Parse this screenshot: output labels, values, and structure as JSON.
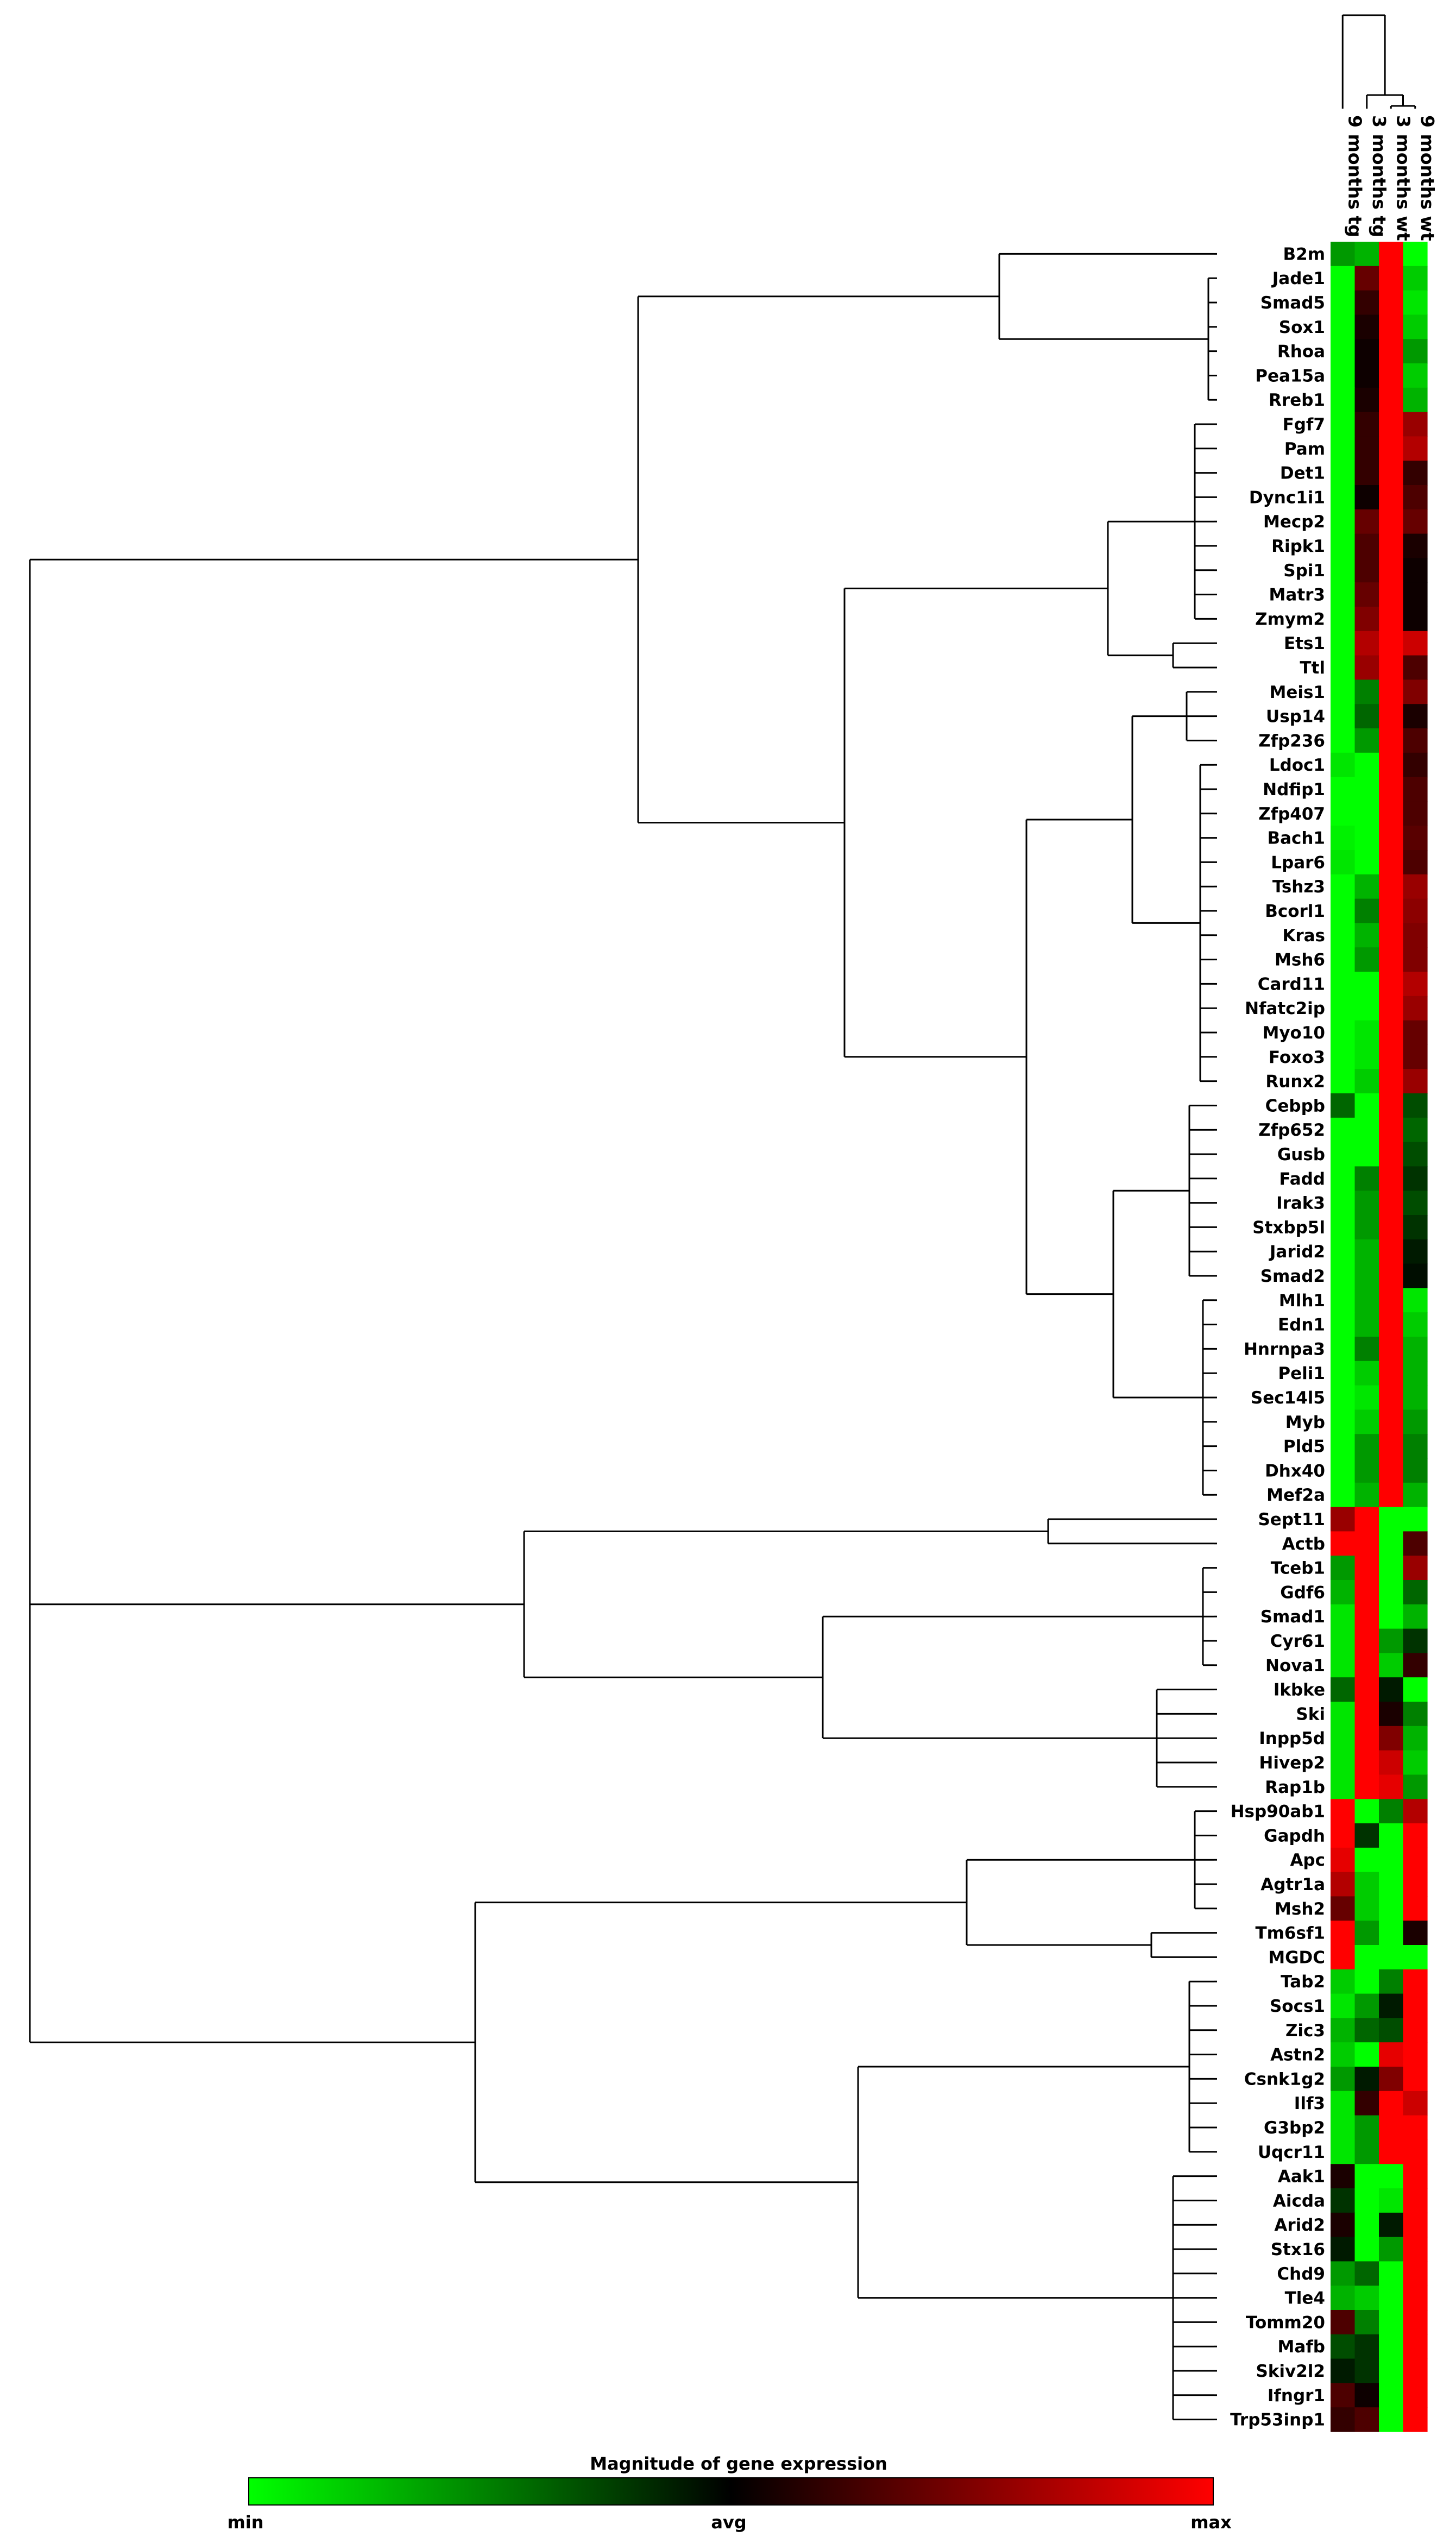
{
  "chart_data": {
    "type": "heatmap",
    "title": "",
    "xlabel": "",
    "ylabel": "",
    "value_range": [
      -1,
      1
    ],
    "colorscale": {
      "min": "#00ff00",
      "mid": "#000000",
      "max": "#ff0000"
    },
    "conditions": [
      "9 months tg",
      "3 months tg",
      "3 months wt",
      "9 months wt"
    ],
    "genes": [
      "B2m",
      "Jade1",
      "Smad5",
      "Sox1",
      "Rhoa",
      "Pea15a",
      "Rreb1",
      "Fgf7",
      "Pam",
      "Det1",
      "Dync1i1",
      "Mecp2",
      "Ripk1",
      "Spi1",
      "Matr3",
      "Zmym2",
      "Ets1",
      "Ttl",
      "Meis1",
      "Usp14",
      "Zfp236",
      "Ldoc1",
      "Ndfip1",
      "Zfp407",
      "Bach1",
      "Lpar6",
      "Tshz3",
      "Bcorl1",
      "Kras",
      "Msh6",
      "Card11",
      "Nfatc2ip",
      "Myo10",
      "Foxo3",
      "Runx2",
      "Cebpb",
      "Zfp652",
      "Gusb",
      "Fadd",
      "Irak3",
      "Stxbp5l",
      "Jarid2",
      "Smad2",
      "Mlh1",
      "Edn1",
      "Hnrnpa3",
      "Peli1",
      "Sec14l5",
      "Myb",
      "Pld5",
      "Dhx40",
      "Mef2a",
      "Sept11",
      "Actb",
      "Tceb1",
      "Gdf6",
      "Smad1",
      "Cyr61",
      "Nova1",
      "Ikbke",
      "Ski",
      "Inpp5d",
      "Hivep2",
      "Rap1b",
      "Hsp90ab1",
      "Gapdh",
      "Apc",
      "Agtr1a",
      "Msh2",
      "Tm6sf1",
      "MGDC",
      "Tab2",
      "Socs1",
      "Zic3",
      "Astn2",
      "Csnk1g2",
      "Ilf3",
      "G3bp2",
      "Uqcr11",
      "Aak1",
      "Aicda",
      "Arid2",
      "Stx16",
      "Chd9",
      "Tle4",
      "Tomm20",
      "Mafb",
      "Skiv2l2",
      "Ifngr1",
      "Trp53inp1"
    ],
    "values": [
      [
        -0.6,
        -0.7,
        1,
        -1
      ],
      [
        -1,
        0.4,
        1,
        -0.8
      ],
      [
        -1,
        0.2,
        1,
        -0.9
      ],
      [
        -1,
        0.1,
        1,
        -0.8
      ],
      [
        -1,
        0.05,
        1,
        -0.6
      ],
      [
        -1,
        0.05,
        1,
        -0.8
      ],
      [
        -1,
        0.1,
        1,
        -0.7
      ],
      [
        -1,
        0.2,
        1,
        0.6
      ],
      [
        -1,
        0.2,
        1,
        0.7
      ],
      [
        -1,
        0.2,
        1,
        0.2
      ],
      [
        -1,
        0.05,
        1,
        0.3
      ],
      [
        -1,
        0.4,
        1,
        0.4
      ],
      [
        -1,
        0.3,
        1,
        0.1
      ],
      [
        -1,
        0.3,
        1,
        0.05
      ],
      [
        -1,
        0.4,
        1,
        0.05
      ],
      [
        -1,
        0.5,
        1,
        0.05
      ],
      [
        -1,
        0.7,
        1,
        0.8
      ],
      [
        -1,
        0.6,
        1,
        0.3
      ],
      [
        -1,
        -0.5,
        1,
        0.5
      ],
      [
        -1,
        -0.4,
        1,
        0.1
      ],
      [
        -1,
        -0.6,
        1,
        0.3
      ],
      [
        -0.9,
        -1,
        1,
        0.2
      ],
      [
        -1,
        -1,
        1,
        0.3
      ],
      [
        -1,
        -1,
        1,
        0.3
      ],
      [
        -0.95,
        -1,
        1,
        0.35
      ],
      [
        -0.9,
        -1,
        1,
        0.3
      ],
      [
        -1,
        -0.7,
        1,
        0.6
      ],
      [
        -1,
        -0.5,
        1,
        0.55
      ],
      [
        -1,
        -0.7,
        1,
        0.5
      ],
      [
        -1,
        -0.6,
        1,
        0.5
      ],
      [
        -1,
        -1,
        1,
        0.7
      ],
      [
        -1,
        -1,
        1,
        0.6
      ],
      [
        -1,
        -0.9,
        1,
        0.4
      ],
      [
        -1,
        -0.9,
        1,
        0.4
      ],
      [
        -1,
        -0.8,
        1,
        0.6
      ],
      [
        -0.4,
        -1,
        1,
        -0.3
      ],
      [
        -1,
        -1,
        1,
        -0.4
      ],
      [
        -1,
        -1,
        1,
        -0.3
      ],
      [
        -1,
        -0.5,
        1,
        -0.2
      ],
      [
        -1,
        -0.6,
        1,
        -0.3
      ],
      [
        -1,
        -0.6,
        1,
        -0.2
      ],
      [
        -1,
        -0.7,
        1,
        -0.1
      ],
      [
        -1,
        -0.7,
        1,
        -0.05
      ],
      [
        -1,
        -0.7,
        1,
        -0.9
      ],
      [
        -1,
        -0.7,
        1,
        -0.8
      ],
      [
        -1,
        -0.5,
        1,
        -0.7
      ],
      [
        -1,
        -0.8,
        1,
        -0.7
      ],
      [
        -1,
        -0.9,
        1,
        -0.7
      ],
      [
        -1,
        -0.8,
        1,
        -0.6
      ],
      [
        -1,
        -0.6,
        1,
        -0.5
      ],
      [
        -1,
        -0.6,
        1,
        -0.5
      ],
      [
        -1,
        -0.7,
        1,
        -0.7
      ],
      [
        0.6,
        1,
        -1,
        -1
      ],
      [
        1,
        1,
        -1,
        0.3
      ],
      [
        -0.6,
        1,
        -1,
        0.6
      ],
      [
        -0.7,
        1,
        -1,
        -0.4
      ],
      [
        -0.9,
        1,
        -1,
        -0.7
      ],
      [
        -0.9,
        1,
        -0.6,
        -0.2
      ],
      [
        -0.9,
        1,
        -0.8,
        0.2
      ],
      [
        -0.4,
        1,
        -0.1,
        -1
      ],
      [
        -0.9,
        1,
        0.1,
        -0.5
      ],
      [
        -0.9,
        1,
        0.5,
        -0.7
      ],
      [
        -0.9,
        1,
        0.8,
        -0.8
      ],
      [
        -0.9,
        1,
        0.9,
        -0.6
      ],
      [
        1,
        -1,
        -0.5,
        0.7
      ],
      [
        1,
        -0.2,
        -1,
        1
      ],
      [
        0.9,
        -1,
        -1,
        1
      ],
      [
        0.7,
        -0.8,
        -1,
        1
      ],
      [
        0.4,
        -0.8,
        -1,
        1
      ],
      [
        1,
        -0.6,
        -1,
        0.1
      ],
      [
        1,
        -1,
        -1,
        -1
      ],
      [
        -0.8,
        -1,
        -0.5,
        1
      ],
      [
        -0.9,
        -0.6,
        -0.1,
        1
      ],
      [
        -0.7,
        -0.4,
        -0.3,
        1
      ],
      [
        -0.8,
        -1,
        0.9,
        1
      ],
      [
        -0.6,
        -0.1,
        0.5,
        1
      ],
      [
        -0.9,
        0.2,
        1,
        0.8
      ],
      [
        -0.9,
        -0.6,
        1,
        1
      ],
      [
        -0.9,
        -0.6,
        1,
        1
      ],
      [
        0.1,
        -1,
        -1,
        1
      ],
      [
        -0.2,
        -1,
        -0.9,
        1
      ],
      [
        0.1,
        -1,
        -0.1,
        1
      ],
      [
        -0.1,
        -1,
        -0.6,
        1
      ],
      [
        -0.6,
        -0.4,
        -1,
        1
      ],
      [
        -0.7,
        -0.8,
        -1,
        1
      ],
      [
        0.3,
        -0.5,
        -1,
        1
      ],
      [
        -0.3,
        -0.2,
        -1,
        1
      ],
      [
        -0.1,
        -0.2,
        -1,
        1
      ],
      [
        0.3,
        0.05,
        -1,
        1
      ],
      [
        0.2,
        0.3,
        -1,
        1
      ]
    ],
    "legend": {
      "title": "Magnitude of gene expression",
      "min_label": "min",
      "avg_label": "avg",
      "max_label": "max"
    }
  }
}
